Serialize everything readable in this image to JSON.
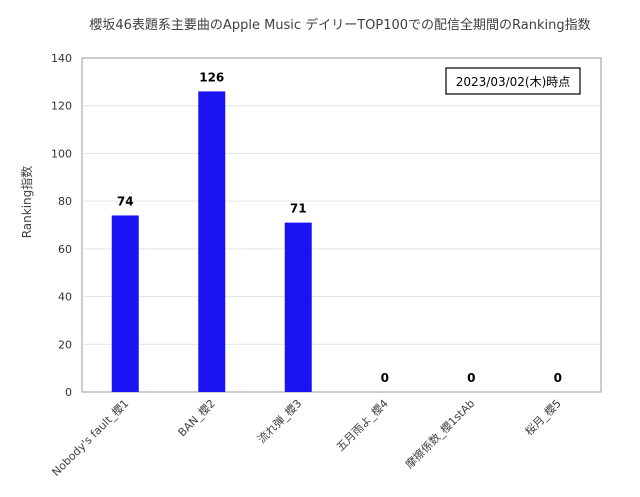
{
  "chart_data": {
    "type": "bar",
    "title": "櫻坂46表題系主要曲のApple Music デイリーTOP100での配信全期間のRanking指数",
    "ylabel": "Ranking指数",
    "xlabel": "",
    "annotation": "2023/03/02(木)時点",
    "categories": [
      "Nobody's fault_櫻1",
      "BAN_櫻2",
      "流れ弾_櫻3",
      "五月雨よ_櫻4",
      "摩擦係数_櫻1stAb",
      "桜月_櫻5"
    ],
    "values": [
      74,
      126,
      71,
      0,
      0,
      0
    ],
    "ylim": [
      0,
      140
    ],
    "yticks": [
      0,
      20,
      40,
      60,
      80,
      100,
      120,
      140
    ],
    "grid": true,
    "bar_color": "#1a14f5",
    "legend": "none"
  }
}
